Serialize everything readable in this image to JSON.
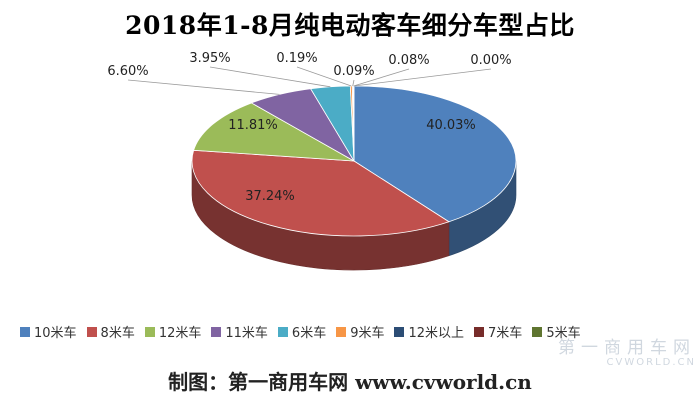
{
  "chart_data": {
    "type": "pie",
    "title": "2018年1-8月纯电动客车细分车型占比",
    "categories": [
      "10米车",
      "8米车",
      "12米车",
      "11米车",
      "6米车",
      "9米车",
      "12米以上",
      "7米车",
      "5米车"
    ],
    "values": [
      40.03,
      37.24,
      11.81,
      6.6,
      3.95,
      0.19,
      0.09,
      0.08,
      0.0
    ],
    "value_labels": [
      "40.03%",
      "37.24%",
      "11.81%",
      "6.60%",
      "3.95%",
      "0.19%",
      "0.09%",
      "0.08%",
      "0.00%"
    ],
    "colors": [
      "#4F81BD",
      "#C0504D",
      "#9BBB59",
      "#8064A2",
      "#4BACC6",
      "#F79646",
      "#2C4D75",
      "#772C2A",
      "#5F7530"
    ],
    "legend_position": "bottom",
    "style": "3d"
  },
  "credit": "制图：第一商用车网 www.cvworld.cn",
  "watermark": {
    "text_cn": "第一商用车网",
    "text_en": "CVWORLD.CN"
  }
}
